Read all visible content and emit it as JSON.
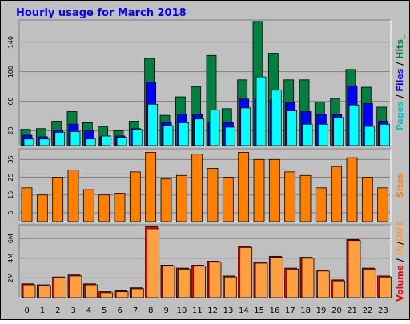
{
  "title": "Hourly usage for March 2018",
  "colors": {
    "background": "#c0c0c0",
    "title": "#0000ff",
    "pages": "#00ffff",
    "files": "#0000ff",
    "hits": "#008040",
    "sites": "#ff8000",
    "volume": "#ff0000",
    "in_out": "#ffa040",
    "axis_text": "#000000"
  },
  "chart_data": [
    {
      "type": "bar",
      "panel": "top",
      "categories": [
        "0",
        "1",
        "2",
        "3",
        "4",
        "5",
        "6",
        "7",
        "8",
        "9",
        "10",
        "11",
        "12",
        "13",
        "14",
        "15",
        "16",
        "17",
        "18",
        "19",
        "20",
        "21",
        "22",
        "23"
      ],
      "series": [
        {
          "name": "Hits",
          "values": [
            22,
            23,
            33,
            46,
            31,
            26,
            20,
            33,
            118,
            41,
            66,
            80,
            122,
            50,
            89,
            168,
            125,
            89,
            89,
            59,
            64,
            103,
            79,
            52
          ]
        },
        {
          "name": "Files",
          "values": [
            14,
            12,
            21,
            29,
            20,
            12,
            13,
            23,
            86,
            31,
            42,
            42,
            32,
            31,
            63,
            63,
            62,
            58,
            46,
            42,
            42,
            81,
            57,
            33
          ]
        },
        {
          "name": "Pages",
          "values": [
            9,
            9,
            18,
            19,
            9,
            13,
            11,
            22,
            56,
            27,
            31,
            36,
            48,
            25,
            51,
            93,
            75,
            47,
            29,
            29,
            38,
            55,
            26,
            29
          ]
        }
      ],
      "yticks": [
        20,
        60,
        100,
        140
      ],
      "ylim": [
        0,
        170
      ],
      "ylabel_parts": [
        {
          "text": "Pages",
          "color": "#00c0c0"
        },
        {
          "text": " / ",
          "color": "#000000"
        },
        {
          "text": "Files",
          "color": "#0000ff"
        },
        {
          "text": " / ",
          "color": "#000000"
        },
        {
          "text": "Hits_",
          "color": "#008040"
        }
      ]
    },
    {
      "type": "bar",
      "panel": "middle",
      "categories": [
        "0",
        "1",
        "2",
        "3",
        "4",
        "5",
        "6",
        "7",
        "8",
        "9",
        "10",
        "11",
        "12",
        "13",
        "14",
        "15",
        "16",
        "17",
        "18",
        "19",
        "20",
        "21",
        "22",
        "23"
      ],
      "series": [
        {
          "name": "Sites",
          "values": [
            19,
            15,
            25,
            29,
            18,
            15,
            16,
            28,
            39,
            24,
            26,
            38,
            30,
            25,
            39,
            35,
            35,
            28,
            26,
            19,
            31,
            36,
            25,
            19
          ]
        }
      ],
      "yticks": [
        5,
        15,
        25,
        35
      ],
      "ylim": [
        0,
        41
      ],
      "ylabel_parts": [
        {
          "text": "Sites",
          "color": "#ff8000"
        }
      ]
    },
    {
      "type": "bar",
      "panel": "bottom",
      "categories": [
        "0",
        "1",
        "2",
        "3",
        "4",
        "5",
        "6",
        "7",
        "8",
        "9",
        "10",
        "11",
        "12",
        "13",
        "14",
        "15",
        "16",
        "17",
        "18",
        "19",
        "20",
        "21",
        "22",
        "23"
      ],
      "series": [
        {
          "name": "Volume",
          "values": [
            1.4,
            1.3,
            2.1,
            2.3,
            1.4,
            0.6,
            0.7,
            1.0,
            7.2,
            3.3,
            3.0,
            3.3,
            3.7,
            2.2,
            5.2,
            3.6,
            4.2,
            3.0,
            4.1,
            2.8,
            1.8,
            5.9,
            3.0,
            2.2
          ]
        },
        {
          "name": "IN/OUT",
          "values": [
            1.3,
            1.2,
            2.0,
            2.2,
            1.3,
            0.5,
            0.6,
            0.9,
            7.0,
            3.2,
            2.9,
            3.2,
            3.6,
            2.1,
            5.1,
            3.5,
            4.1,
            2.9,
            4.0,
            2.7,
            1.7,
            5.8,
            2.9,
            2.1
          ]
        }
      ],
      "yticks_values": [
        2,
        4,
        6
      ],
      "ytick_labels": [
        "2M",
        "4M",
        "6M"
      ],
      "ylim": [
        0,
        7.4
      ],
      "ylabel_parts": [
        {
          "text": "Volume",
          "color": "#ff0000"
        },
        {
          "text": " / ",
          "color": "#000000"
        },
        {
          "text": "IN",
          "color": "#ffa040"
        },
        {
          "text": "/",
          "color": "#000000"
        },
        {
          "text": "OUT",
          "color": "#ffa040"
        }
      ]
    }
  ]
}
